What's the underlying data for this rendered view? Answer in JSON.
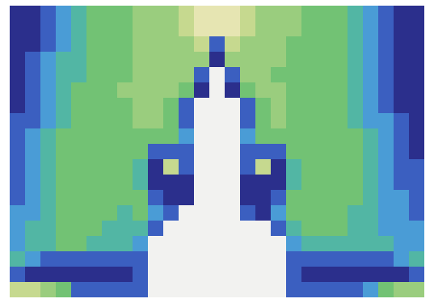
{
  "chart_data": {
    "type": "heatmap",
    "tick_labels": false,
    "zlim": [
      0,
      8
    ],
    "colors": [
      "#2b2f8c",
      "#3b5fc0",
      "#4a9cd6",
      "#52b6a4",
      "#72c274",
      "#9acd7e",
      "#c6d98f",
      "#e6e5b2",
      "#f2f2f0"
    ],
    "cells": [
      [
        0,
        0,
        1,
        2,
        3,
        4,
        4,
        4,
        5,
        5,
        5,
        6,
        7,
        7,
        7,
        6,
        5,
        5,
        5,
        4,
        4,
        4,
        3,
        2,
        1,
        0,
        0
      ],
      [
        0,
        0,
        1,
        2,
        3,
        4,
        4,
        4,
        5,
        5,
        5,
        6,
        7,
        7,
        7,
        6,
        5,
        5,
        5,
        4,
        4,
        4,
        3,
        2,
        1,
        0,
        0
      ],
      [
        0,
        0,
        1,
        2,
        3,
        4,
        4,
        4,
        5,
        5,
        5,
        5,
        6,
        1,
        6,
        5,
        5,
        5,
        4,
        4,
        4,
        4,
        3,
        2,
        1,
        0,
        0
      ],
      [
        0,
        1,
        2,
        3,
        3,
        4,
        4,
        4,
        5,
        5,
        5,
        5,
        5,
        0,
        5,
        5,
        5,
        5,
        4,
        4,
        4,
        4,
        3,
        2,
        1,
        0,
        0
      ],
      [
        0,
        1,
        2,
        3,
        3,
        4,
        4,
        4,
        5,
        5,
        5,
        5,
        1,
        8,
        1,
        5,
        5,
        4,
        4,
        4,
        4,
        4,
        3,
        2,
        1,
        0,
        0
      ],
      [
        0,
        1,
        2,
        3,
        4,
        4,
        4,
        5,
        5,
        5,
        5,
        4,
        0,
        8,
        0,
        4,
        5,
        5,
        4,
        4,
        4,
        4,
        3,
        2,
        1,
        0,
        0
      ],
      [
        0,
        1,
        2,
        3,
        4,
        4,
        4,
        4,
        5,
        5,
        4,
        1,
        8,
        8,
        8,
        1,
        4,
        5,
        4,
        4,
        4,
        4,
        3,
        2,
        1,
        0,
        0
      ],
      [
        1,
        1,
        2,
        3,
        4,
        4,
        4,
        4,
        5,
        5,
        4,
        1,
        8,
        8,
        8,
        1,
        4,
        5,
        4,
        4,
        4,
        4,
        3,
        2,
        2,
        1,
        0
      ],
      [
        1,
        2,
        3,
        4,
        4,
        4,
        4,
        4,
        4,
        4,
        4,
        2,
        8,
        8,
        8,
        2,
        4,
        4,
        4,
        4,
        4,
        4,
        4,
        3,
        2,
        1,
        0
      ],
      [
        1,
        2,
        3,
        4,
        4,
        4,
        4,
        4,
        4,
        1,
        1,
        1,
        8,
        8,
        8,
        1,
        1,
        1,
        4,
        4,
        4,
        4,
        4,
        3,
        2,
        1,
        0
      ],
      [
        1,
        2,
        3,
        4,
        4,
        4,
        4,
        4,
        3,
        0,
        6,
        1,
        8,
        8,
        8,
        1,
        6,
        0,
        3,
        4,
        4,
        4,
        4,
        3,
        2,
        1,
        1
      ],
      [
        1,
        2,
        3,
        4,
        4,
        4,
        4,
        4,
        3,
        0,
        0,
        0,
        8,
        8,
        8,
        0,
        0,
        0,
        3,
        4,
        4,
        4,
        4,
        3,
        2,
        1,
        1
      ],
      [
        1,
        2,
        3,
        4,
        4,
        4,
        4,
        4,
        4,
        1,
        0,
        0,
        8,
        8,
        8,
        0,
        0,
        1,
        4,
        4,
        4,
        4,
        4,
        3,
        2,
        2,
        1
      ],
      [
        2,
        2,
        3,
        4,
        4,
        4,
        4,
        3,
        4,
        2,
        1,
        8,
        8,
        8,
        8,
        1,
        0,
        2,
        4,
        4,
        4,
        4,
        3,
        3,
        2,
        2,
        1
      ],
      [
        2,
        3,
        3,
        4,
        4,
        4,
        3,
        3,
        3,
        1,
        8,
        8,
        8,
        8,
        8,
        8,
        8,
        1,
        3,
        4,
        4,
        4,
        3,
        3,
        2,
        2,
        2
      ],
      [
        2,
        3,
        3,
        4,
        4,
        3,
        3,
        3,
        2,
        8,
        8,
        8,
        8,
        8,
        8,
        8,
        8,
        8,
        2,
        3,
        3,
        3,
        3,
        3,
        3,
        2,
        2
      ],
      [
        3,
        2,
        1,
        1,
        1,
        1,
        1,
        1,
        1,
        8,
        8,
        8,
        8,
        8,
        8,
        8,
        8,
        8,
        1,
        1,
        1,
        1,
        1,
        1,
        1,
        2,
        3
      ],
      [
        1,
        0,
        0,
        0,
        0,
        0,
        0,
        0,
        1,
        8,
        8,
        8,
        8,
        8,
        8,
        8,
        8,
        8,
        1,
        0,
        0,
        0,
        0,
        0,
        0,
        0,
        1
      ],
      [
        6,
        6,
        5,
        4,
        1,
        1,
        1,
        1,
        1,
        8,
        8,
        8,
        8,
        8,
        8,
        8,
        8,
        8,
        1,
        1,
        1,
        1,
        1,
        2,
        4,
        5,
        5
      ]
    ]
  }
}
